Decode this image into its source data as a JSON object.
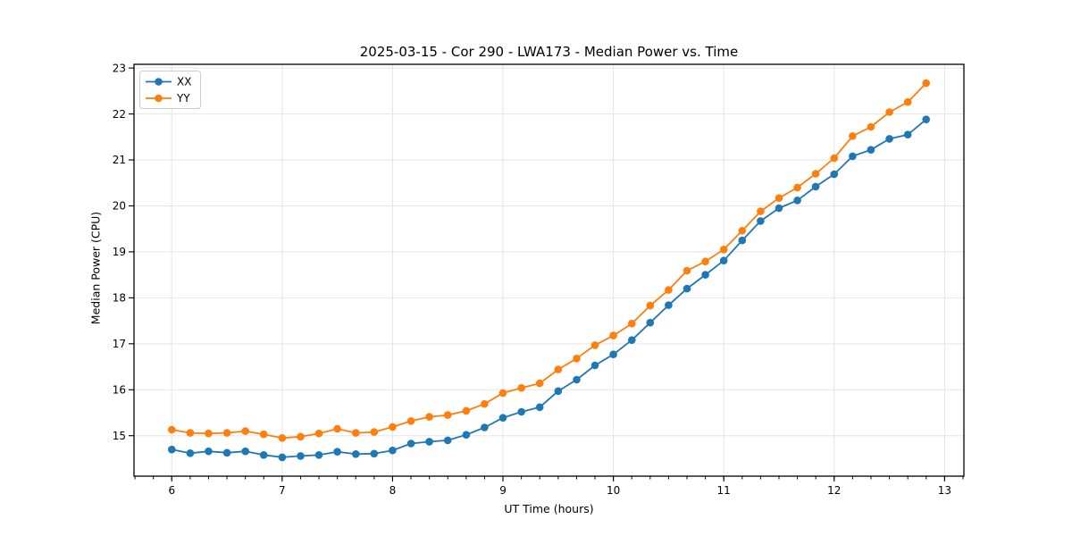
{
  "figure": {
    "background": "#ffffff",
    "frame_color": "#000000",
    "grid_color": "#e5e5e5",
    "text_color": "#000000"
  },
  "chart_data": {
    "type": "line",
    "title": "2025-03-15 - Cor 290 - LWA173 - Median Power vs. Time",
    "xlabel": "UT Time (hours)",
    "ylabel": "Median Power (CPU)",
    "xlim": [
      5.658,
      13.175
    ],
    "ylim": [
      14.12,
      23.08
    ],
    "xticks": [
      6,
      7,
      8,
      9,
      10,
      11,
      12,
      13
    ],
    "yticks": [
      15,
      16,
      17,
      18,
      19,
      20,
      21,
      22,
      23
    ],
    "x_minor_step": 0.166667,
    "grid": true,
    "legend_loc": "upper-left",
    "marker": "circle",
    "x": [
      6.0,
      6.167,
      6.333,
      6.5,
      6.667,
      6.833,
      7.0,
      7.167,
      7.333,
      7.5,
      7.667,
      7.833,
      8.0,
      8.167,
      8.333,
      8.5,
      8.667,
      8.833,
      9.0,
      9.167,
      9.333,
      9.5,
      9.667,
      9.833,
      10.0,
      10.167,
      10.333,
      10.5,
      10.667,
      10.833,
      11.0,
      11.167,
      11.333,
      11.5,
      11.667,
      11.833,
      12.0,
      12.167,
      12.333,
      12.5,
      12.667,
      12.833
    ],
    "series": [
      {
        "name": "XX",
        "color": "#1f77b4",
        "values": [
          14.7,
          14.62,
          14.66,
          14.63,
          14.66,
          14.58,
          14.53,
          14.56,
          14.58,
          14.65,
          14.6,
          14.61,
          14.68,
          14.83,
          14.87,
          14.9,
          15.02,
          15.18,
          15.39,
          15.52,
          15.62,
          15.97,
          16.22,
          16.53,
          16.77,
          17.08,
          17.46,
          17.84,
          18.2,
          18.5,
          18.81,
          19.25,
          19.67,
          19.95,
          20.12,
          20.42,
          20.69,
          21.08,
          21.22,
          21.46,
          21.55,
          21.88
        ]
      },
      {
        "name": "YY",
        "color": "#ff7f0e",
        "values": [
          15.13,
          15.06,
          15.05,
          15.06,
          15.1,
          15.03,
          14.95,
          14.98,
          15.05,
          15.15,
          15.06,
          15.08,
          15.19,
          15.32,
          15.41,
          15.45,
          15.54,
          15.69,
          15.93,
          16.04,
          16.14,
          16.44,
          16.68,
          16.97,
          17.18,
          17.44,
          17.83,
          18.17,
          18.59,
          18.79,
          19.05,
          19.46,
          19.88,
          20.17,
          20.4,
          20.7,
          21.04,
          21.52,
          21.72,
          22.04,
          22.26,
          22.67
        ]
      }
    ]
  }
}
